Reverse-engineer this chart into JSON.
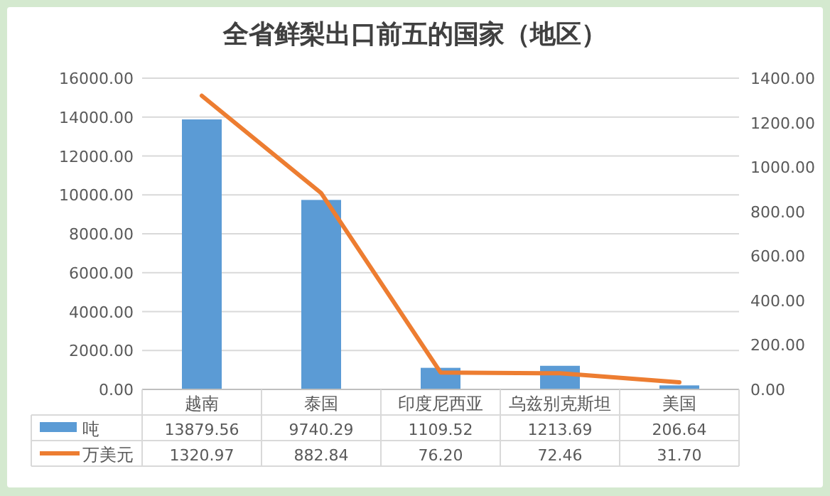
{
  "chart_data": {
    "type": "bar",
    "title": "全省鲜梨出口前五的国家（地区）",
    "categories": [
      "越南",
      "泰国",
      "印度尼西亚",
      "乌兹别克斯坦",
      "美国"
    ],
    "series": [
      {
        "name": "吨",
        "color": "#5b9bd5",
        "values": [
          13879.56,
          9740.29,
          1109.52,
          1213.69,
          206.64
        ],
        "value_labels": [
          "13879.56",
          "9740.29",
          "1109.52",
          "1213.69",
          "206.64"
        ]
      },
      {
        "name": "万美元",
        "type": "line",
        "axis": "y2",
        "color": "#ed7d31",
        "values": [
          1320.97,
          882.84,
          76.2,
          72.46,
          31.7
        ],
        "value_labels": [
          "1320.97",
          "882.84",
          "76.20",
          "72.46",
          "31.70"
        ]
      }
    ],
    "ylim": [
      0,
      16000
    ],
    "yticks": [
      {
        "value": 0,
        "label": "0.00"
      },
      {
        "value": 2000,
        "label": "2000.00"
      },
      {
        "value": 4000,
        "label": "4000.00"
      },
      {
        "value": 6000,
        "label": "6000.00"
      },
      {
        "value": 8000,
        "label": "8000.00"
      },
      {
        "value": 10000,
        "label": "10000.00"
      },
      {
        "value": 12000,
        "label": "12000.00"
      },
      {
        "value": 14000,
        "label": "14000.00"
      },
      {
        "value": 16000,
        "label": "16000.00"
      }
    ],
    "y2lim": [
      0,
      1400
    ],
    "y2ticks": [
      {
        "value": 0,
        "label": "0.00"
      },
      {
        "value": 200,
        "label": "200.00"
      },
      {
        "value": 400,
        "label": "400.00"
      },
      {
        "value": 600,
        "label": "600.00"
      },
      {
        "value": 800,
        "label": "800.00"
      },
      {
        "value": 1000,
        "label": "1000.00"
      },
      {
        "value": 1200,
        "label": "1200.00"
      },
      {
        "value": 1400,
        "label": "1400.00"
      }
    ],
    "grid": "y",
    "legend": "bottom",
    "line_style": "solid",
    "marker": "none"
  }
}
